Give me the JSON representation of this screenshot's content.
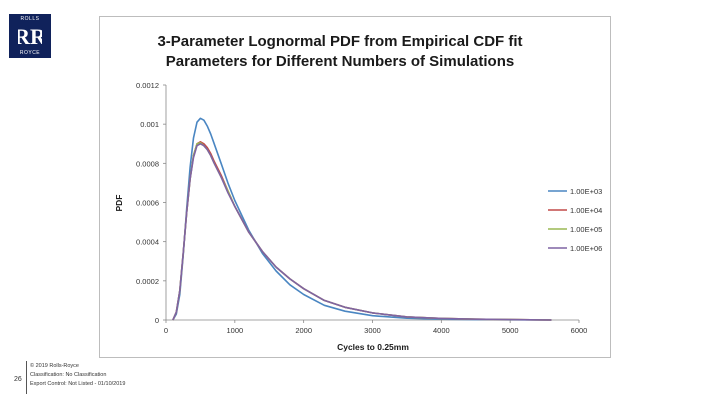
{
  "logo": {
    "top_text": "ROLLS",
    "monogram": "RR",
    "bottom_text": "ROYCE"
  },
  "slide_number": "26",
  "footer": {
    "lines": [
      "© 2019 Rolls-Royce",
      "Classification: No Classification",
      "Export Control: Not Listed - 01/10/2019"
    ]
  },
  "colors": {
    "navy": "#10225b",
    "series": [
      "#4a86c2",
      "#c24a48",
      "#9ab854",
      "#7f63a3"
    ]
  },
  "chart_data": {
    "type": "line",
    "title": [
      "3-Parameter Lognormal PDF from Empirical CDF fit",
      "Parameters for Different Numbers of Simulations"
    ],
    "xlabel": "Cycles to 0.25mm",
    "ylabel": "PDF",
    "xlim": [
      0,
      6000
    ],
    "ylim": [
      0,
      0.0012
    ],
    "xticks": [
      0,
      1000,
      2000,
      3000,
      4000,
      5000,
      6000
    ],
    "xtick_labels": [
      "0",
      "1000",
      "2000",
      "3000",
      "4000",
      "5000",
      "6000"
    ],
    "yticks": [
      0,
      0.0002,
      0.0004,
      0.0006,
      0.0008,
      0.001,
      0.0012
    ],
    "ytick_labels": [
      "0",
      "0.0002",
      "0.0004",
      "0.0006",
      "0.0008",
      "0.001",
      "0.0012"
    ],
    "grid": false,
    "legend_position": "right",
    "series": [
      {
        "name": "1.00E+03",
        "x": [
          100,
          150,
          200,
          250,
          300,
          350,
          400,
          450,
          500,
          550,
          600,
          650,
          700,
          800,
          900,
          1000,
          1200,
          1400,
          1600,
          1800,
          2000,
          2300,
          2600,
          3000,
          3500,
          4000,
          4500,
          5000,
          5600
        ],
        "y": [
          0,
          3e-05,
          0.00013,
          0.00033,
          0.00057,
          0.00078,
          0.00093,
          0.00101,
          0.00103,
          0.00102,
          0.00099,
          0.00095,
          0.0009,
          0.0008,
          0.0007,
          0.00061,
          0.00046,
          0.00034,
          0.00025,
          0.00018,
          0.00013,
          7.5e-05,
          4.5e-05,
          2.2e-05,
          9e-06,
          4e-06,
          2e-06,
          1e-06,
          0
        ]
      },
      {
        "name": "1.00E+04",
        "x": [
          100,
          150,
          200,
          250,
          300,
          350,
          400,
          450,
          500,
          550,
          600,
          650,
          700,
          800,
          900,
          1000,
          1200,
          1400,
          1600,
          1800,
          2000,
          2300,
          2600,
          3000,
          3500,
          4000,
          4500,
          5000,
          5600
        ],
        "y": [
          0,
          4e-05,
          0.00015,
          0.00034,
          0.00055,
          0.00072,
          0.00084,
          0.0009,
          0.00091,
          0.0009,
          0.00088,
          0.00085,
          0.00081,
          0.00074,
          0.00066,
          0.00058,
          0.00045,
          0.00035,
          0.00027,
          0.00021,
          0.00016,
          0.0001,
          6.5e-05,
          3.6e-05,
          1.6e-05,
          8e-06,
          4e-06,
          2e-06,
          0
        ]
      },
      {
        "name": "1.00E+05",
        "x": [
          100,
          150,
          200,
          250,
          300,
          350,
          400,
          450,
          500,
          550,
          600,
          650,
          700,
          800,
          900,
          1000,
          1200,
          1400,
          1600,
          1800,
          2000,
          2300,
          2600,
          3000,
          3500,
          4000,
          4500,
          5000,
          5600
        ],
        "y": [
          0,
          4e-05,
          0.00015,
          0.00034,
          0.00055,
          0.00072,
          0.00084,
          0.0009,
          0.000905,
          0.00089,
          0.00087,
          0.00084,
          0.0008,
          0.00073,
          0.00066,
          0.00058,
          0.00045,
          0.00035,
          0.00027,
          0.00021,
          0.00016,
          0.0001,
          6.5e-05,
          3.6e-05,
          1.6e-05,
          8e-06,
          4e-06,
          2e-06,
          0
        ]
      },
      {
        "name": "1.00E+06",
        "x": [
          100,
          150,
          200,
          250,
          300,
          350,
          400,
          450,
          500,
          550,
          600,
          650,
          700,
          800,
          900,
          1000,
          1200,
          1400,
          1600,
          1800,
          2000,
          2300,
          2600,
          3000,
          3500,
          4000,
          4500,
          5000,
          5600
        ],
        "y": [
          0,
          4e-05,
          0.00015,
          0.00034,
          0.00055,
          0.00072,
          0.00083,
          0.00089,
          0.0009,
          0.00089,
          0.00087,
          0.00084,
          0.0008,
          0.00073,
          0.00065,
          0.00058,
          0.00045,
          0.00035,
          0.00027,
          0.00021,
          0.00016,
          0.0001,
          6.5e-05,
          3.6e-05,
          1.6e-05,
          8e-06,
          4e-06,
          2e-06,
          0
        ]
      }
    ]
  }
}
